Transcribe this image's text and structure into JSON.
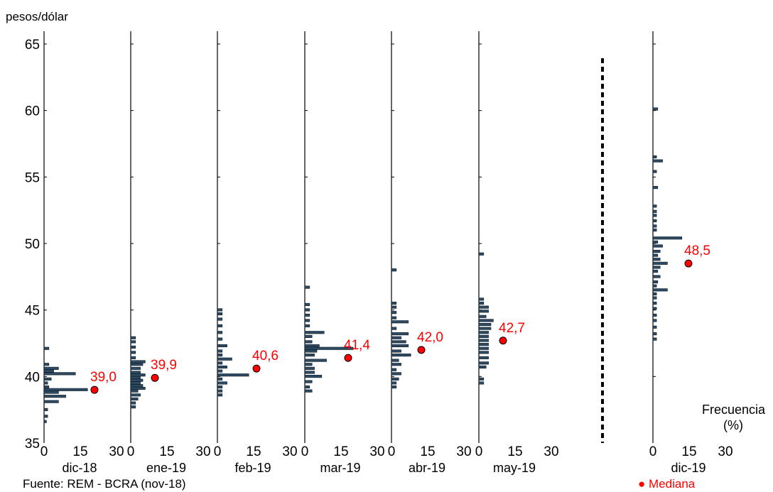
{
  "chart_data": {
    "type": "bar",
    "orientation": "horizontal-histogram",
    "ylabel": "pesos/dólar",
    "xlabel": "Frecuencia (%)",
    "ylim": [
      35,
      66
    ],
    "yticks": [
      35,
      40,
      45,
      50,
      55,
      60,
      65
    ],
    "xlim": [
      0,
      30
    ],
    "xticks": [
      0,
      15,
      30
    ],
    "bar_color": "#2e4a62",
    "median_color": "#ff0000",
    "panels": [
      {
        "name": "dic-18",
        "median": 39.0,
        "median_label": "39,0",
        "bins": [
          [
            36.6,
            1
          ],
          [
            37.0,
            1.5
          ],
          [
            37.5,
            1.5
          ],
          [
            38.1,
            6
          ],
          [
            38.5,
            9
          ],
          [
            38.8,
            6
          ],
          [
            39.0,
            18
          ],
          [
            39.2,
            2
          ],
          [
            39.5,
            1.5
          ],
          [
            39.8,
            3
          ],
          [
            40.2,
            13
          ],
          [
            40.4,
            4
          ],
          [
            40.6,
            6
          ],
          [
            40.9,
            2
          ],
          [
            42.1,
            2
          ]
        ]
      },
      {
        "name": "ene-19",
        "median": 39.9,
        "median_label": "39,9",
        "bins": [
          [
            37.7,
            2
          ],
          [
            38.0,
            2
          ],
          [
            38.3,
            3
          ],
          [
            38.6,
            4
          ],
          [
            38.9,
            3
          ],
          [
            39.1,
            6
          ],
          [
            39.3,
            5
          ],
          [
            39.5,
            4
          ],
          [
            39.7,
            5
          ],
          [
            39.9,
            4
          ],
          [
            40.1,
            6
          ],
          [
            40.3,
            4
          ],
          [
            40.6,
            4
          ],
          [
            40.9,
            5
          ],
          [
            41.1,
            6
          ],
          [
            41.4,
            2
          ],
          [
            41.8,
            2
          ],
          [
            42.2,
            2
          ],
          [
            42.6,
            2
          ],
          [
            42.9,
            2
          ]
        ]
      },
      {
        "name": "feb-19",
        "median": 40.6,
        "median_label": "40,6",
        "bins": [
          [
            38.6,
            2
          ],
          [
            38.9,
            2
          ],
          [
            39.2,
            2
          ],
          [
            39.5,
            4
          ],
          [
            39.8,
            2
          ],
          [
            40.1,
            13
          ],
          [
            40.4,
            2
          ],
          [
            40.7,
            4
          ],
          [
            41.0,
            2
          ],
          [
            41.3,
            6
          ],
          [
            41.6,
            2
          ],
          [
            41.9,
            2
          ],
          [
            42.3,
            4
          ],
          [
            42.8,
            2
          ],
          [
            43.3,
            2
          ],
          [
            43.8,
            2
          ],
          [
            44.3,
            2
          ],
          [
            44.7,
            2
          ],
          [
            45.0,
            2
          ]
        ]
      },
      {
        "name": "mar-19",
        "median": 41.4,
        "median_label": "41,4",
        "bins": [
          [
            38.9,
            3
          ],
          [
            39.2,
            2
          ],
          [
            39.6,
            3
          ],
          [
            40.0,
            7
          ],
          [
            40.3,
            4
          ],
          [
            40.6,
            4
          ],
          [
            40.9,
            3
          ],
          [
            41.2,
            9
          ],
          [
            41.6,
            4
          ],
          [
            41.9,
            5
          ],
          [
            42.1,
            20
          ],
          [
            42.3,
            6
          ],
          [
            42.6,
            3
          ],
          [
            43.0,
            3
          ],
          [
            43.3,
            8
          ],
          [
            43.8,
            2
          ],
          [
            44.2,
            2
          ],
          [
            44.6,
            2
          ],
          [
            45.0,
            2
          ],
          [
            45.4,
            2
          ],
          [
            46.7,
            2
          ]
        ]
      },
      {
        "name": "abr-19",
        "median": 42.0,
        "median_label": "42,0",
        "bins": [
          [
            39.2,
            2
          ],
          [
            39.5,
            2
          ],
          [
            39.8,
            3
          ],
          [
            40.2,
            4
          ],
          [
            40.5,
            2
          ],
          [
            40.9,
            4
          ],
          [
            41.2,
            3
          ],
          [
            41.6,
            8
          ],
          [
            41.9,
            4
          ],
          [
            42.3,
            7
          ],
          [
            42.6,
            6
          ],
          [
            42.9,
            4
          ],
          [
            43.2,
            7
          ],
          [
            43.6,
            2
          ],
          [
            44.1,
            7
          ],
          [
            44.4,
            2
          ],
          [
            44.8,
            2
          ],
          [
            45.2,
            2
          ],
          [
            45.5,
            2
          ],
          [
            48.0,
            2
          ]
        ]
      },
      {
        "name": "may-19",
        "median": 42.7,
        "median_label": "42,7",
        "bins": [
          [
            39.5,
            2
          ],
          [
            39.8,
            2
          ],
          [
            40.7,
            3
          ],
          [
            41.0,
            4
          ],
          [
            41.4,
            4
          ],
          [
            41.8,
            4
          ],
          [
            42.1,
            4
          ],
          [
            42.4,
            4
          ],
          [
            42.7,
            4
          ],
          [
            43.0,
            4
          ],
          [
            43.3,
            4
          ],
          [
            43.6,
            5
          ],
          [
            43.9,
            5
          ],
          [
            44.2,
            6
          ],
          [
            44.5,
            3
          ],
          [
            44.9,
            4
          ],
          [
            45.2,
            4
          ],
          [
            45.5,
            2
          ],
          [
            45.8,
            2
          ],
          [
            49.2,
            2
          ]
        ]
      },
      {
        "name": "dic-19",
        "median": 48.5,
        "median_label": "48,5",
        "bins": [
          [
            42.8,
            1.5
          ],
          [
            43.2,
            1.5
          ],
          [
            43.7,
            1.5
          ],
          [
            44.2,
            1.5
          ],
          [
            44.6,
            1.5
          ],
          [
            45.1,
            1.5
          ],
          [
            45.5,
            1.5
          ],
          [
            45.9,
            1.5
          ],
          [
            46.2,
            1.5
          ],
          [
            46.5,
            6
          ],
          [
            46.8,
            1.5
          ],
          [
            47.1,
            2
          ],
          [
            47.5,
            3
          ],
          [
            47.9,
            2
          ],
          [
            48.2,
            3
          ],
          [
            48.5,
            6
          ],
          [
            48.8,
            3
          ],
          [
            49.1,
            2
          ],
          [
            49.4,
            3
          ],
          [
            49.8,
            4
          ],
          [
            50.1,
            2
          ],
          [
            50.4,
            12
          ],
          [
            51.0,
            1.5
          ],
          [
            51.3,
            1.5
          ],
          [
            51.7,
            1.5
          ],
          [
            52.1,
            1.5
          ],
          [
            52.4,
            1.5
          ],
          [
            52.8,
            1.5
          ],
          [
            54.2,
            2
          ],
          [
            55.4,
            1.5
          ],
          [
            56.2,
            4
          ],
          [
            56.5,
            1.5
          ],
          [
            60.1,
            2
          ]
        ]
      }
    ]
  },
  "footer": {
    "source": "Fuente: REM - BCRA (nov-18)",
    "legend_median": "Mediana",
    "legend_marker": "●"
  }
}
